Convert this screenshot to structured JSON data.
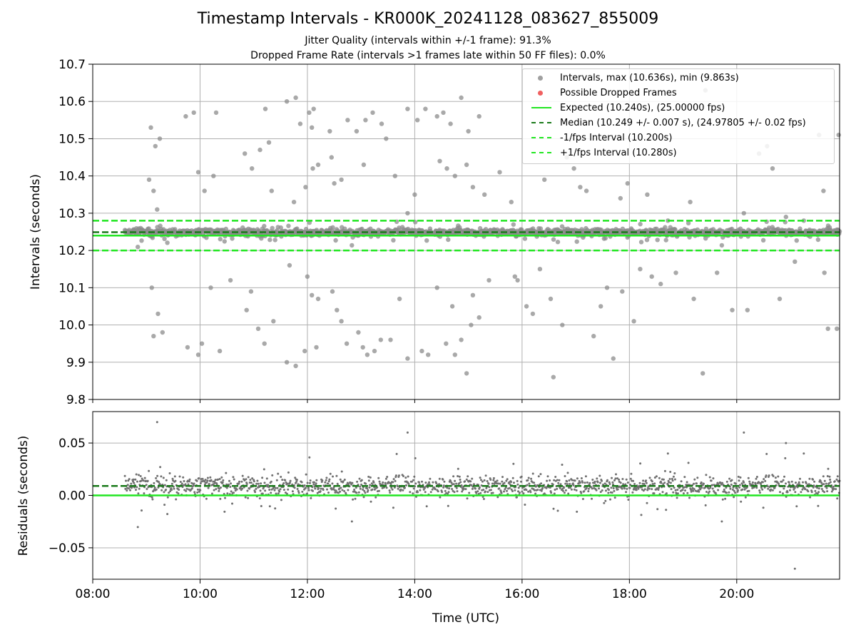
{
  "title": "Timestamp Intervals - KR000K_20241128_083627_855009",
  "subtitle_jitter": "Jitter Quality (intervals within +/-1 frame): 91.3%",
  "subtitle_dropped": "Dropped Frame Rate (intervals >1 frames late within 50 FF files): 0.0%",
  "colors": {
    "intervals": "#8c8c8c",
    "dropped": "#f06060",
    "expected": "#22e622",
    "median": "#1a7a1a",
    "fps_bounds": "#22e622",
    "residuals": "#707070",
    "grid": "#b0b0b0"
  },
  "chart_data": [
    {
      "type": "scatter",
      "panel": "top",
      "ylabel": "Intervals (seconds)",
      "xlim": [
        "08:00",
        "21:55"
      ],
      "ylim": [
        9.8,
        10.7
      ],
      "yticks": [
        "9.8",
        "9.9",
        "10.0",
        "10.1",
        "10.2",
        "10.3",
        "10.4",
        "10.5",
        "10.6",
        "10.7"
      ],
      "grid": true,
      "legend_position": "top-right",
      "legend": [
        "Intervals, max (10.636s), min (9.863s)",
        "Possible Dropped Frames",
        "Expected (10.240s), (25.00000 fps)",
        "Median (10.249 +/- 0.007 s), (24.97805 +/- 0.02 fps)",
        "-1/fps Interval (10.200s)",
        "+1/fps Interval (10.280s)"
      ],
      "series_stats": {
        "start_time": "08:36",
        "end_time": "21:55",
        "count": 4700,
        "max": 10.636,
        "min": 9.863,
        "median": 10.249,
        "median_spread": 0.007,
        "dropped_frames": 0
      },
      "reference_lines": {
        "expected": 10.24,
        "median": 10.249,
        "minus_one_fps": 10.2,
        "plus_one_fps": 10.28
      },
      "outliers": [
        [
          "09:05",
          10.53
        ],
        [
          "09:08",
          10.36
        ],
        [
          "09:10",
          10.48
        ],
        [
          "09:15",
          10.5
        ],
        [
          "09:03",
          10.39
        ],
        [
          "09:12",
          10.31
        ],
        [
          "09:06",
          10.1
        ],
        [
          "09:08",
          9.97
        ],
        [
          "09:13",
          10.03
        ],
        [
          "09:18",
          9.98
        ],
        [
          "09:44",
          10.56
        ],
        [
          "09:53",
          10.57
        ],
        [
          "09:58",
          10.41
        ],
        [
          "10:05",
          10.36
        ],
        [
          "10:15",
          10.4
        ],
        [
          "10:18",
          10.57
        ],
        [
          "09:46",
          9.94
        ],
        [
          "09:58",
          9.92
        ],
        [
          "10:02",
          9.95
        ],
        [
          "10:12",
          10.1
        ],
        [
          "10:22",
          9.93
        ],
        [
          "10:34",
          10.12
        ],
        [
          "10:50",
          10.46
        ],
        [
          "10:58",
          10.42
        ],
        [
          "11:07",
          10.47
        ],
        [
          "11:13",
          10.58
        ],
        [
          "11:17",
          10.49
        ],
        [
          "11:20",
          10.36
        ],
        [
          "11:37",
          10.6
        ],
        [
          "11:47",
          10.61
        ],
        [
          "11:52",
          10.54
        ],
        [
          "12:02",
          10.57
        ],
        [
          "11:58",
          10.37
        ],
        [
          "11:45",
          10.33
        ],
        [
          "10:52",
          10.04
        ],
        [
          "10:57",
          10.09
        ],
        [
          "11:05",
          9.99
        ],
        [
          "11:12",
          9.95
        ],
        [
          "11:22",
          10.01
        ],
        [
          "11:37",
          9.9
        ],
        [
          "11:47",
          9.89
        ],
        [
          "11:57",
          9.93
        ],
        [
          "12:00",
          10.13
        ],
        [
          "11:40",
          10.16
        ],
        [
          "12:10",
          9.94
        ],
        [
          "12:05",
          10.53
        ],
        [
          "12:07",
          10.58
        ],
        [
          "12:25",
          10.52
        ],
        [
          "12:06",
          10.42
        ],
        [
          "12:12",
          10.43
        ],
        [
          "12:27",
          10.45
        ],
        [
          "12:30",
          10.38
        ],
        [
          "12:38",
          10.39
        ],
        [
          "12:45",
          10.55
        ],
        [
          "12:55",
          10.52
        ],
        [
          "13:03",
          10.43
        ],
        [
          "13:05",
          10.55
        ],
        [
          "13:13",
          10.57
        ],
        [
          "13:23",
          10.54
        ],
        [
          "13:28",
          10.5
        ],
        [
          "13:38",
          10.4
        ],
        [
          "13:52",
          10.3
        ],
        [
          "14:00",
          10.35
        ],
        [
          "12:05",
          10.08
        ],
        [
          "12:12",
          10.07
        ],
        [
          "12:28",
          10.09
        ],
        [
          "12:33",
          10.04
        ],
        [
          "12:38",
          10.01
        ],
        [
          "12:44",
          9.95
        ],
        [
          "12:57",
          9.98
        ],
        [
          "13:02",
          9.94
        ],
        [
          "13:07",
          9.92
        ],
        [
          "13:15",
          9.93
        ],
        [
          "13:22",
          9.96
        ],
        [
          "13:33",
          9.96
        ],
        [
          "13:43",
          10.07
        ],
        [
          "13:52",
          9.91
        ],
        [
          "14:08",
          9.93
        ],
        [
          "14:15",
          9.92
        ],
        [
          "13:52",
          10.58
        ],
        [
          "14:03",
          10.55
        ],
        [
          "14:12",
          10.58
        ],
        [
          "14:25",
          10.56
        ],
        [
          "14:32",
          10.57
        ],
        [
          "14:40",
          10.54
        ],
        [
          "14:52",
          10.61
        ],
        [
          "15:00",
          10.52
        ],
        [
          "15:12",
          10.56
        ],
        [
          "14:28",
          10.44
        ],
        [
          "14:36",
          10.42
        ],
        [
          "14:45",
          10.4
        ],
        [
          "14:58",
          10.43
        ],
        [
          "15:05",
          10.37
        ],
        [
          "15:18",
          10.35
        ],
        [
          "14:35",
          9.95
        ],
        [
          "14:45",
          9.92
        ],
        [
          "14:52",
          9.96
        ],
        [
          "14:58",
          9.87
        ],
        [
          "15:03",
          10.0
        ],
        [
          "15:12",
          10.02
        ],
        [
          "14:25",
          10.1
        ],
        [
          "14:42",
          10.05
        ],
        [
          "15:05",
          10.08
        ],
        [
          "15:23",
          10.12
        ],
        [
          "15:35",
          10.41
        ],
        [
          "15:48",
          10.33
        ],
        [
          "15:52",
          10.13
        ],
        [
          "15:55",
          10.12
        ],
        [
          "16:05",
          10.05
        ],
        [
          "16:12",
          10.03
        ],
        [
          "16:20",
          10.15
        ],
        [
          "16:25",
          10.39
        ],
        [
          "16:32",
          10.07
        ],
        [
          "16:35",
          9.86
        ],
        [
          "16:45",
          10.0
        ],
        [
          "16:50",
          10.45
        ],
        [
          "16:58",
          10.42
        ],
        [
          "17:05",
          10.37
        ],
        [
          "17:12",
          10.36
        ],
        [
          "17:20",
          9.97
        ],
        [
          "17:28",
          10.05
        ],
        [
          "17:35",
          10.1
        ],
        [
          "17:42",
          9.91
        ],
        [
          "17:50",
          10.34
        ],
        [
          "17:52",
          10.09
        ],
        [
          "17:58",
          10.38
        ],
        [
          "18:05",
          10.01
        ],
        [
          "18:12",
          10.15
        ],
        [
          "18:20",
          10.35
        ],
        [
          "18:25",
          10.13
        ],
        [
          "18:35",
          10.11
        ],
        [
          "18:43",
          10.28
        ],
        [
          "18:52",
          10.14
        ],
        [
          "19:08",
          10.33
        ],
        [
          "19:12",
          10.07
        ],
        [
          "19:22",
          9.87
        ],
        [
          "19:28",
          10.24
        ],
        [
          "19:38",
          10.14
        ],
        [
          "19:45",
          10.25
        ],
        [
          "19:55",
          10.04
        ],
        [
          "20:08",
          10.3
        ],
        [
          "20:12",
          10.04
        ],
        [
          "20:25",
          10.46
        ],
        [
          "20:34",
          10.48
        ],
        [
          "20:40",
          10.42
        ],
        [
          "20:48",
          10.07
        ],
        [
          "20:55",
          10.29
        ],
        [
          "21:05",
          10.17
        ],
        [
          "21:15",
          10.28
        ],
        [
          "21:32",
          10.51
        ],
        [
          "21:37",
          10.36
        ],
        [
          "21:42",
          9.99
        ],
        [
          "21:38",
          10.14
        ],
        [
          "21:52",
          9.99
        ],
        [
          "21:54",
          10.51
        ],
        [
          "19:25",
          10.63
        ]
      ]
    },
    {
      "type": "scatter",
      "panel": "bottom",
      "xlabel": "Time (UTC)",
      "ylabel": "Residuals (seconds)",
      "xlim": [
        "08:00",
        "21:55"
      ],
      "ylim": [
        -0.08,
        0.08
      ],
      "xticks": [
        "08:00",
        "10:00",
        "12:00",
        "14:00",
        "16:00",
        "18:00",
        "20:00"
      ],
      "yticks": [
        "−0.05",
        "0.00",
        "0.05"
      ],
      "grid": true,
      "reference_lines": {
        "expected": 0.0,
        "median": 0.009
      }
    }
  ]
}
